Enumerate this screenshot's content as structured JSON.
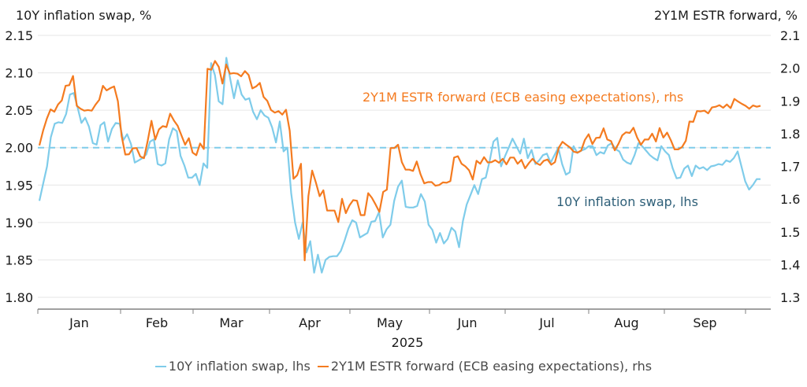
{
  "chart_data": {
    "type": "line",
    "title_left": "10Y inflation swap, %",
    "title_right": "2Y1M ESTR forward, %",
    "xlabel": "2025",
    "x_tick_labels": [
      "Jan",
      "Feb",
      "Mar",
      "Apr",
      "May",
      "Jun",
      "Jul",
      "Aug",
      "Sep"
    ],
    "y_left": {
      "ticks": [
        "2.15",
        "2.10",
        "2.05",
        "2.00",
        "1.95",
        "1.90",
        "1.85",
        "1.80"
      ],
      "range": [
        1.8,
        2.15
      ]
    },
    "y_right": {
      "ticks": [
        "2.1",
        "2.0",
        "1.9",
        "1.8",
        "1.7",
        "1.6",
        "1.5",
        "1.4",
        "1.3"
      ],
      "range": [
        1.3,
        2.1
      ]
    },
    "reference_line": {
      "axis": "left",
      "value": 2.0,
      "style": "dashed",
      "color": "#7FCCEA"
    },
    "grid": true,
    "legend_position": "bottom",
    "annotations": [
      {
        "text": "2Y1M ESTR forward (ECB easing expectations), rhs",
        "color": "#F47B20",
        "series": "estr"
      },
      {
        "text": "10Y inflation swap, lhs",
        "color": "#2E5F78",
        "series": "swap"
      }
    ],
    "x_months_span": "Jan 2025 – late Sep 2025",
    "series": [
      {
        "name": "10Y inflation swap, lhs",
        "key": "swap",
        "axis": "left",
        "color": "#7FCCEA",
        "values": [
          1.929,
          1.952,
          1.975,
          2.014,
          2.032,
          2.034,
          2.033,
          2.045,
          2.071,
          2.073,
          2.054,
          2.033,
          2.04,
          2.028,
          2.006,
          2.004,
          2.03,
          2.034,
          2.008,
          2.025,
          2.033,
          2.032,
          2.01,
          2.018,
          2.005,
          1.98,
          1.983,
          1.986,
          1.991,
          2.008,
          2.011,
          1.978,
          1.976,
          1.979,
          2.011,
          2.026,
          2.022,
          1.989,
          1.976,
          1.96,
          1.96,
          1.965,
          1.95,
          1.979,
          1.973,
          2.113,
          2.097,
          2.062,
          2.058,
          2.12,
          2.092,
          2.066,
          2.09,
          2.071,
          2.064,
          2.066,
          2.048,
          2.038,
          2.05,
          2.043,
          2.04,
          2.027,
          2.007,
          2.035,
          1.995,
          2.0,
          1.939,
          1.9,
          1.878,
          1.9,
          1.86,
          1.875,
          1.833,
          1.857,
          1.833,
          1.85,
          1.854,
          1.855,
          1.855,
          1.862,
          1.876,
          1.892,
          1.903,
          1.9,
          1.88,
          1.883,
          1.886,
          1.901,
          1.902,
          1.914,
          1.88,
          1.891,
          1.897,
          1.929,
          1.948,
          1.956,
          1.921,
          1.92,
          1.92,
          1.922,
          1.938,
          1.928,
          1.897,
          1.89,
          1.873,
          1.886,
          1.872,
          1.878,
          1.893,
          1.888,
          1.867,
          1.902,
          1.924,
          1.937,
          1.95,
          1.938,
          1.958,
          1.96,
          1.982,
          2.008,
          2.013,
          1.975,
          1.988,
          2.0,
          2.012,
          2.002,
          1.992,
          2.012,
          1.986,
          1.997,
          1.978,
          1.983,
          1.99,
          1.992,
          1.98,
          1.99,
          2.0,
          1.978,
          1.964,
          1.967,
          2.002,
          1.993,
          1.996,
          1.998,
          2.002,
          2.002,
          1.99,
          1.994,
          1.992,
          2.003,
          2.006,
          1.998,
          1.995,
          1.984,
          1.98,
          1.978,
          1.99,
          2.006,
          2.002,
          1.996,
          1.99,
          1.986,
          1.983,
          2.002,
          1.995,
          1.99,
          1.972,
          1.959,
          1.96,
          1.972,
          1.976,
          1.962,
          1.976,
          1.972,
          1.974,
          1.97,
          1.975,
          1.976,
          1.978,
          1.977,
          1.983,
          1.981,
          1.986,
          1.995,
          1.975,
          1.955,
          1.944,
          1.95,
          1.958,
          1.958
        ]
      },
      {
        "name": "2Y1M ESTR forward (ECB easing expectations), rhs",
        "key": "estr",
        "axis": "right",
        "color": "#F47B20",
        "values": [
          1.764,
          1.809,
          1.846,
          1.874,
          1.867,
          1.889,
          1.901,
          1.946,
          1.948,
          1.976,
          1.885,
          1.876,
          1.87,
          1.872,
          1.87,
          1.888,
          1.903,
          1.946,
          1.932,
          1.939,
          1.944,
          1.899,
          1.793,
          1.736,
          1.737,
          1.755,
          1.756,
          1.73,
          1.725,
          1.779,
          1.839,
          1.782,
          1.813,
          1.823,
          1.82,
          1.861,
          1.84,
          1.824,
          1.795,
          1.766,
          1.786,
          1.742,
          1.734,
          1.77,
          1.753,
          1.998,
          1.995,
          2.022,
          2.004,
          1.953,
          2.011,
          1.983,
          1.985,
          1.983,
          1.975,
          1.991,
          1.979,
          1.938,
          1.944,
          1.955,
          1.912,
          1.9,
          1.872,
          1.864,
          1.869,
          1.858,
          1.873,
          1.809,
          1.662,
          1.673,
          1.708,
          1.413,
          1.609,
          1.687,
          1.651,
          1.609,
          1.627,
          1.565,
          1.565,
          1.565,
          1.53,
          1.601,
          1.557,
          1.581,
          1.597,
          1.595,
          1.551,
          1.551,
          1.618,
          1.604,
          1.583,
          1.561,
          1.622,
          1.629,
          1.756,
          1.756,
          1.766,
          1.713,
          1.69,
          1.69,
          1.686,
          1.715,
          1.676,
          1.648,
          1.652,
          1.652,
          1.641,
          1.643,
          1.651,
          1.65,
          1.655,
          1.727,
          1.731,
          1.708,
          1.7,
          1.688,
          1.66,
          1.717,
          1.708,
          1.728,
          1.712,
          1.713,
          1.719,
          1.711,
          1.723,
          1.706,
          1.727,
          1.727,
          1.708,
          1.72,
          1.694,
          1.71,
          1.723,
          1.71,
          1.704,
          1.717,
          1.721,
          1.705,
          1.713,
          1.757,
          1.775,
          1.766,
          1.758,
          1.745,
          1.742,
          1.748,
          1.781,
          1.798,
          1.768,
          1.787,
          1.788,
          1.816,
          1.782,
          1.777,
          1.749,
          1.769,
          1.795,
          1.804,
          1.802,
          1.818,
          1.788,
          1.766,
          1.782,
          1.782,
          1.8,
          1.776,
          1.817,
          1.788,
          1.803,
          1.78,
          1.752,
          1.752,
          1.759,
          1.778,
          1.837,
          1.836,
          1.869,
          1.868,
          1.87,
          1.862,
          1.88,
          1.882,
          1.887,
          1.879,
          1.889,
          1.878,
          1.906,
          1.898,
          1.891,
          1.885,
          1.876,
          1.886,
          1.882,
          1.885
        ]
      }
    ]
  }
}
